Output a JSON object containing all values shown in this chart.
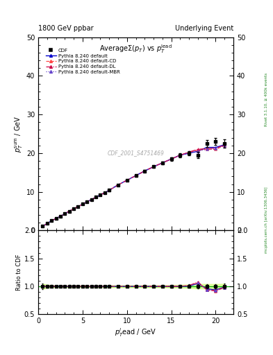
{
  "title_left": "1800 GeV ppbar",
  "title_right": "Underlying Event",
  "plot_title": "AverageΣ(p_T) vs p_T^{lead}",
  "xlabel": "p_T^{l}ead / GeV",
  "ylabel_main": "p_T^{s}um / GeV",
  "ylabel_ratio": "Ratio to CDF",
  "watermark": "CDF_2001_S4751469",
  "right_label_top": "Rivet 3.1.10, ≥ 400k events",
  "right_label_bottom": "mcplots.cern.ch [arXiv:1306.3436]",
  "xlim": [
    0,
    22
  ],
  "ylim_main": [
    0,
    50
  ],
  "ylim_ratio": [
    0.5,
    2
  ],
  "xticks": [
    0,
    5,
    10,
    15,
    20
  ],
  "yticks_main": [
    0,
    10,
    20,
    30,
    40,
    50
  ],
  "yticks_ratio": [
    0.5,
    1.0,
    1.5,
    2.0
  ],
  "cdf_x": [
    0.5,
    1.0,
    1.5,
    2.0,
    2.5,
    3.0,
    3.5,
    4.0,
    4.5,
    5.0,
    5.5,
    6.0,
    6.5,
    7.0,
    7.5,
    8.0,
    9.0,
    10.0,
    11.0,
    12.0,
    13.0,
    14.0,
    15.0,
    16.0,
    17.0,
    18.0,
    19.0,
    20.0,
    21.0
  ],
  "cdf_y": [
    1.1,
    1.8,
    2.5,
    3.1,
    3.7,
    4.3,
    5.0,
    5.6,
    6.2,
    6.8,
    7.4,
    8.0,
    8.6,
    9.2,
    9.8,
    10.4,
    11.8,
    13.0,
    14.2,
    15.4,
    16.5,
    17.5,
    18.5,
    19.5,
    20.0,
    19.5,
    22.5,
    23.0,
    22.5
  ],
  "cdf_yerr": [
    0.05,
    0.05,
    0.05,
    0.05,
    0.05,
    0.05,
    0.1,
    0.1,
    0.1,
    0.1,
    0.1,
    0.1,
    0.15,
    0.15,
    0.15,
    0.2,
    0.2,
    0.25,
    0.25,
    0.3,
    0.3,
    0.35,
    0.4,
    0.5,
    0.6,
    0.8,
    0.9,
    0.9,
    1.0
  ],
  "pythia_default_x": [
    0.5,
    1.0,
    1.5,
    2.0,
    2.5,
    3.0,
    3.5,
    4.0,
    4.5,
    5.0,
    5.5,
    6.0,
    6.5,
    7.0,
    7.5,
    8.0,
    9.0,
    10.0,
    11.0,
    12.0,
    13.0,
    14.0,
    15.0,
    16.0,
    17.0,
    18.0,
    19.0,
    20.0,
    21.0
  ],
  "pythia_default_y": [
    1.1,
    1.8,
    2.5,
    3.1,
    3.7,
    4.3,
    5.0,
    5.6,
    6.2,
    6.8,
    7.4,
    8.0,
    8.6,
    9.2,
    9.8,
    10.4,
    11.8,
    13.0,
    14.2,
    15.4,
    16.5,
    17.5,
    18.5,
    19.5,
    20.0,
    20.5,
    21.5,
    21.5,
    22.2
  ],
  "pythia_cd_x": [
    0.5,
    1.0,
    1.5,
    2.0,
    2.5,
    3.0,
    3.5,
    4.0,
    4.5,
    5.0,
    5.5,
    6.0,
    6.5,
    7.0,
    7.5,
    8.0,
    9.0,
    10.0,
    11.0,
    12.0,
    13.0,
    14.0,
    15.0,
    16.0,
    17.0,
    18.0,
    19.0,
    20.0,
    21.0
  ],
  "pythia_cd_y": [
    1.1,
    1.8,
    2.5,
    3.1,
    3.7,
    4.3,
    5.0,
    5.6,
    6.2,
    6.8,
    7.4,
    8.0,
    8.6,
    9.2,
    9.8,
    10.4,
    11.8,
    13.0,
    14.2,
    15.4,
    16.5,
    17.5,
    18.5,
    19.5,
    20.2,
    20.8,
    21.0,
    21.0,
    22.0
  ],
  "pythia_dl_x": [
    0.5,
    1.0,
    1.5,
    2.0,
    2.5,
    3.0,
    3.5,
    4.0,
    4.5,
    5.0,
    5.5,
    6.0,
    6.5,
    7.0,
    7.5,
    8.0,
    9.0,
    10.0,
    11.0,
    12.0,
    13.0,
    14.0,
    15.0,
    16.0,
    17.0,
    18.0,
    19.0,
    20.0,
    21.0
  ],
  "pythia_dl_y": [
    1.1,
    1.8,
    2.5,
    3.1,
    3.7,
    4.3,
    5.0,
    5.6,
    6.2,
    6.8,
    7.4,
    8.0,
    8.6,
    9.2,
    9.8,
    10.4,
    11.8,
    13.0,
    14.2,
    15.4,
    16.5,
    17.5,
    18.5,
    19.5,
    20.3,
    21.0,
    21.2,
    21.3,
    22.1
  ],
  "pythia_mbr_x": [
    0.5,
    1.0,
    1.5,
    2.0,
    2.5,
    3.0,
    3.5,
    4.0,
    4.5,
    5.0,
    5.5,
    6.0,
    6.5,
    7.0,
    7.5,
    8.0,
    9.0,
    10.0,
    11.0,
    12.0,
    13.0,
    14.0,
    15.0,
    16.0,
    17.0,
    18.0,
    19.0,
    20.0,
    21.0
  ],
  "pythia_mbr_y": [
    1.1,
    1.8,
    2.5,
    3.1,
    3.7,
    4.3,
    5.0,
    5.6,
    6.2,
    6.8,
    7.4,
    8.0,
    8.6,
    9.2,
    9.8,
    10.4,
    11.8,
    13.0,
    14.2,
    15.4,
    16.5,
    17.5,
    18.5,
    19.5,
    20.1,
    20.6,
    21.0,
    21.2,
    22.0
  ],
  "color_default": "#0000cc",
  "color_cd": "#ff4444",
  "color_dl": "#cc0044",
  "color_mbr": "#6644cc",
  "color_cdf": "#000000",
  "ratio_band_color": "#ccff66",
  "ratio_band_alpha": 0.6,
  "ratio_line_color": "#00aa00",
  "bg_color": "#ffffff"
}
